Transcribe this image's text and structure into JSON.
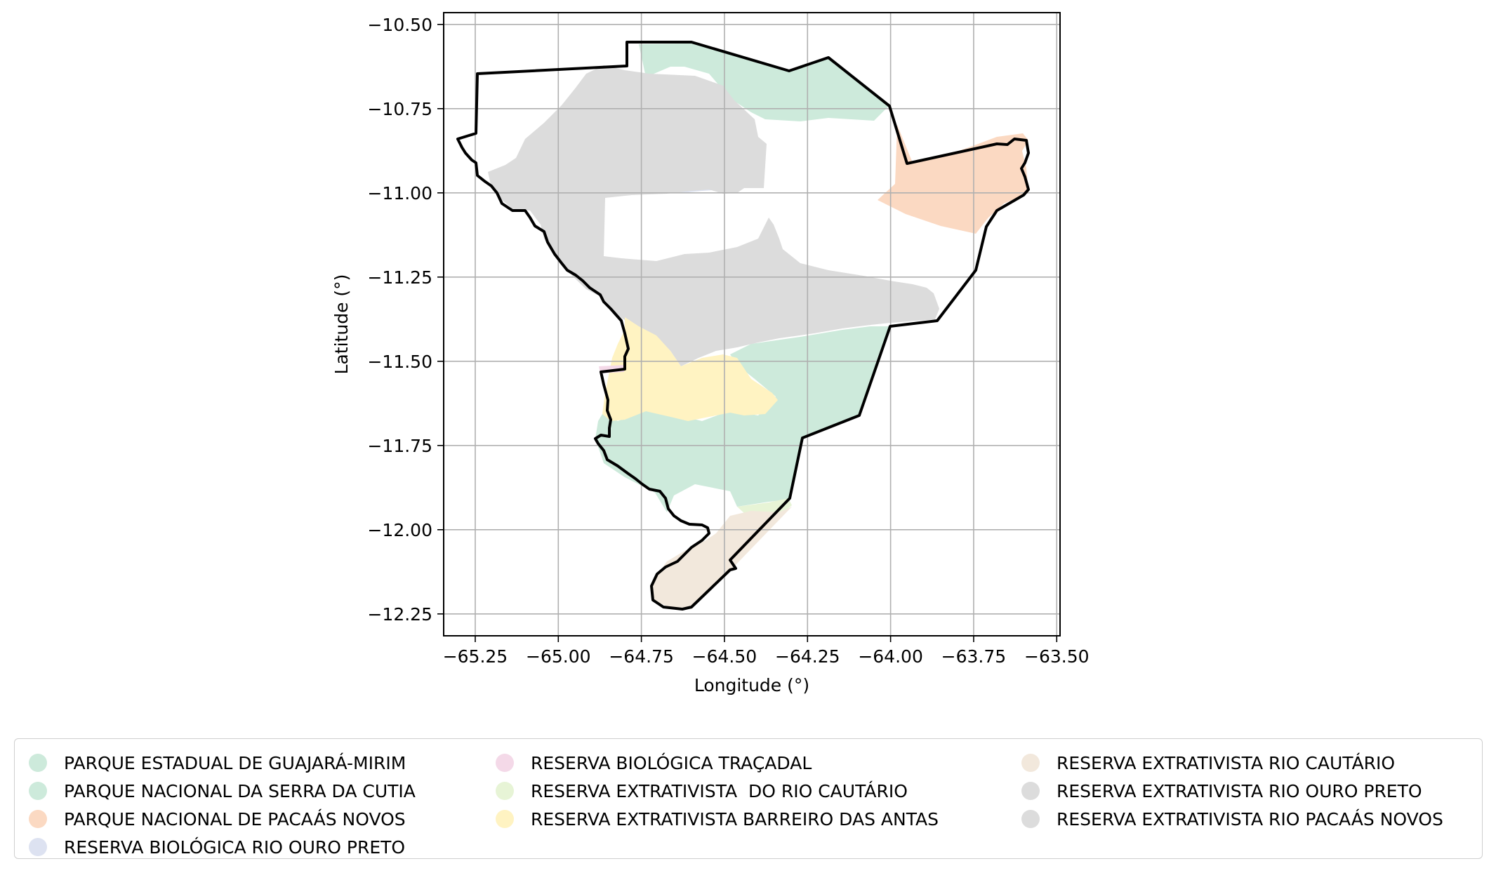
{
  "map": {
    "x_axis": {
      "label": "Longitude (°)",
      "range": [
        -65.345,
        -63.49
      ],
      "ticks": [
        {
          "value": -65.25,
          "label": "−65.25"
        },
        {
          "value": -65.0,
          "label": "−65.00"
        },
        {
          "value": -64.75,
          "label": "−64.75"
        },
        {
          "value": -64.5,
          "label": "−64.50"
        },
        {
          "value": -64.25,
          "label": "−64.25"
        },
        {
          "value": -64.0,
          "label": "−64.00"
        },
        {
          "value": -63.75,
          "label": "−63.75"
        },
        {
          "value": -63.5,
          "label": "−63.50"
        }
      ]
    },
    "y_axis": {
      "label": "Latitude (°)",
      "range": [
        -12.315,
        -10.465
      ],
      "ticks": [
        {
          "value": -10.5,
          "label": "−10.50"
        },
        {
          "value": -10.75,
          "label": "−10.75"
        },
        {
          "value": -11.0,
          "label": "−11.00"
        },
        {
          "value": -11.25,
          "label": "−11.25"
        },
        {
          "value": -11.5,
          "label": "−11.50"
        },
        {
          "value": -11.75,
          "label": "−11.75"
        },
        {
          "value": -12.0,
          "label": "−12.00"
        },
        {
          "value": -12.25,
          "label": "−12.25"
        }
      ]
    },
    "grid": true,
    "legend_placement": "bottom"
  },
  "legend": {
    "items": [
      {
        "label": "PARQUE ESTADUAL DE GUAJARÁ-MIRIM",
        "color": "#cdeadb"
      },
      {
        "label": "PARQUE NACIONAL DA SERRA DA CUTIA",
        "color": "#cdeadb"
      },
      {
        "label": "PARQUE NACIONAL DE PACAÁS NOVOS",
        "color": "#fbd9c2"
      },
      {
        "label": "RESERVA BIOLÓGICA RIO OURO PRETO",
        "color": "#dde2f1"
      },
      {
        "label": "RESERVA BIOLÓGICA TRAÇADAL",
        "color": "#f4d9e8"
      },
      {
        "label": "RESERVA EXTRATIVISTA  DO RIO CAUTÁRIO",
        "color": "#e7f4d6"
      },
      {
        "label": "RESERVA EXTRATIVISTA BARREIRO DAS ANTAS",
        "color": "#fff3c2"
      },
      {
        "label": "RESERVA EXTRATIVISTA RIO CAUTÁRIO",
        "color": "#f2e8dc"
      },
      {
        "label": "RESERVA EXTRATIVISTA RIO OURO PRETO",
        "color": "#dcdcdc"
      },
      {
        "label": "RESERVA EXTRATIVISTA RIO PACAÁS NOVOS",
        "color": "#dcdcdc"
      }
    ]
  },
  "colors": {
    "boundary": "#000000",
    "grid": "#b0b0b0",
    "axes": "#000000"
  }
}
